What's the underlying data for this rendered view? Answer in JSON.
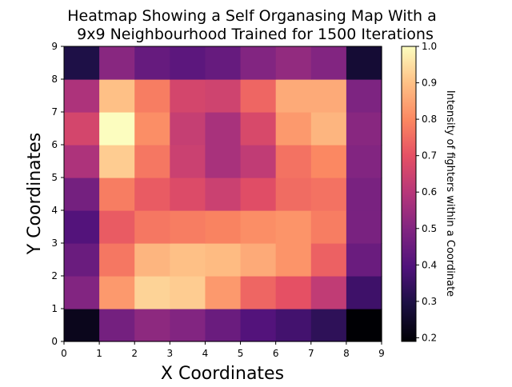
{
  "chart_data": {
    "type": "heatmap",
    "title": [
      "Heatmap Showing a Self Organasing Map With a",
      "9x9 Neighbourhood Trained for 1500 Iterations"
    ],
    "xlabel": "X Coordinates",
    "ylabel": "Y Coordinates",
    "colorbar_label": "Intensity of fighters within a Coordinate",
    "colormap": "magma",
    "xlim": [
      0,
      9
    ],
    "ylim": [
      0,
      9
    ],
    "x_ticks": [
      "0",
      "1",
      "2",
      "3",
      "4",
      "5",
      "6",
      "7",
      "8",
      "9"
    ],
    "y_ticks": [
      "0",
      "1",
      "2",
      "3",
      "4",
      "5",
      "6",
      "7",
      "8",
      "9"
    ],
    "colorbar_range": [
      0.19,
      1.0
    ],
    "colorbar_ticks": [
      "0.2",
      "0.3",
      "0.4",
      "0.5",
      "0.6",
      "0.7",
      "0.8",
      "0.9",
      "1.0"
    ],
    "grid": false,
    "rows_bottom_to_top": [
      [
        0.23,
        0.47,
        0.52,
        0.5,
        0.45,
        0.4,
        0.37,
        0.33,
        0.19
      ],
      [
        0.5,
        0.83,
        0.93,
        0.92,
        0.83,
        0.74,
        0.7,
        0.62,
        0.36
      ],
      [
        0.45,
        0.77,
        0.88,
        0.9,
        0.89,
        0.86,
        0.82,
        0.73,
        0.45
      ],
      [
        0.4,
        0.72,
        0.77,
        0.78,
        0.79,
        0.81,
        0.82,
        0.78,
        0.48
      ],
      [
        0.47,
        0.78,
        0.72,
        0.68,
        0.64,
        0.69,
        0.75,
        0.76,
        0.48
      ],
      [
        0.58,
        0.92,
        0.77,
        0.64,
        0.57,
        0.62,
        0.76,
        0.8,
        0.5
      ],
      [
        0.66,
        1.0,
        0.81,
        0.63,
        0.57,
        0.67,
        0.83,
        0.88,
        0.51
      ],
      [
        0.58,
        0.9,
        0.78,
        0.66,
        0.65,
        0.74,
        0.86,
        0.86,
        0.49
      ],
      [
        0.3,
        0.51,
        0.44,
        0.42,
        0.44,
        0.5,
        0.53,
        0.5,
        0.27
      ]
    ]
  }
}
